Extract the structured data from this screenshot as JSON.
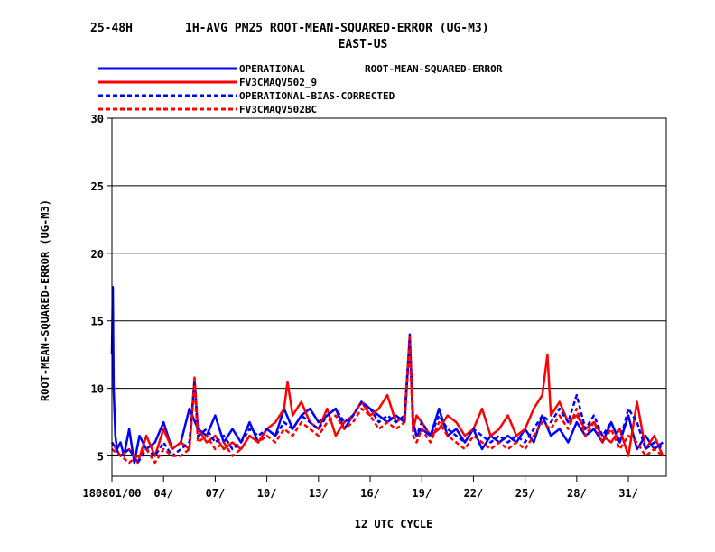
{
  "chart_data": {
    "type": "line",
    "title_left": "25-48H",
    "title_main": "1H-AVG PM25 ROOT-MEAN-SQUARED-ERROR (UG-M3)",
    "subtitle": "EAST-US",
    "legend_note": "ROOT-MEAN-SQUARED-ERROR",
    "ylabel": "ROOT-MEAN-SQUARED-ERROR (UG-M3)",
    "xlabel": "12 UTC CYCLE",
    "ylim": [
      3.5,
      30
    ],
    "xlim": [
      1,
      33.2
    ],
    "yticks": [
      5,
      10,
      15,
      20,
      25,
      30
    ],
    "ytick_labels": [
      "5",
      "10",
      "15",
      "20",
      "25",
      "30"
    ],
    "xticks": [
      1,
      4,
      7,
      10,
      13,
      16,
      19,
      22,
      25,
      28,
      31
    ],
    "xtick_labels": [
      "180801/00",
      "04/",
      "07/",
      "10/",
      "13/",
      "16/",
      "19/",
      "22/",
      "25/",
      "28/",
      "31/"
    ],
    "grid": "horizontal",
    "series": [
      {
        "name": "OPERATIONAL",
        "color": "#0000ff",
        "dash": "solid",
        "x": [
          1.0,
          1.05,
          1.1,
          1.2,
          1.3,
          1.5,
          1.7,
          2.0,
          2.3,
          2.6,
          3.0,
          3.5,
          4.0,
          4.5,
          5.0,
          5.5,
          6.0,
          6.5,
          7.0,
          7.5,
          8.0,
          8.5,
          9.0,
          9.5,
          10.0,
          10.5,
          11.0,
          11.5,
          12.0,
          12.5,
          13.0,
          13.5,
          14.0,
          14.5,
          15.0,
          15.5,
          16.0,
          16.5,
          17.0,
          17.5,
          18.0,
          18.3,
          18.5,
          18.7,
          19.0,
          19.5,
          20.0,
          20.5,
          21.0,
          21.5,
          22.0,
          22.5,
          23.0,
          23.5,
          24.0,
          24.5,
          25.0,
          25.5,
          26.0,
          26.5,
          27.0,
          27.5,
          28.0,
          28.5,
          29.0,
          29.5,
          30.0,
          30.5,
          31.0,
          31.5,
          32.0,
          32.5,
          33.0
        ],
        "y": [
          12.5,
          17.5,
          10.0,
          6.5,
          5.5,
          6.0,
          5.0,
          7.0,
          4.5,
          6.5,
          5.5,
          6.0,
          7.5,
          5.5,
          6.0,
          8.5,
          7.0,
          6.5,
          8.0,
          6.0,
          7.0,
          6.0,
          7.5,
          6.0,
          7.0,
          6.5,
          8.5,
          7.0,
          8.0,
          8.5,
          7.5,
          8.0,
          8.5,
          7.0,
          8.0,
          9.0,
          8.5,
          8.0,
          7.5,
          8.0,
          7.5,
          14.0,
          7.5,
          6.5,
          7.0,
          6.5,
          8.5,
          6.5,
          7.0,
          6.0,
          7.0,
          5.5,
          6.5,
          6.0,
          6.5,
          6.0,
          7.0,
          6.0,
          8.0,
          6.5,
          7.0,
          6.0,
          7.5,
          6.5,
          7.0,
          6.0,
          7.5,
          6.0,
          8.0,
          5.5,
          6.5,
          5.5,
          6.0
        ]
      },
      {
        "name": "FV3CMAQV502_9",
        "color": "#ff0000",
        "dash": "solid",
        "x": [
          1.0,
          1.5,
          2.0,
          2.5,
          3.0,
          3.5,
          4.0,
          4.5,
          5.0,
          5.5,
          5.8,
          6.0,
          6.5,
          7.0,
          7.5,
          8.0,
          8.5,
          9.0,
          9.5,
          10.0,
          10.5,
          11.0,
          11.2,
          11.5,
          12.0,
          12.5,
          13.0,
          13.5,
          14.0,
          14.5,
          15.0,
          15.5,
          16.0,
          16.5,
          17.0,
          17.5,
          18.0,
          18.3,
          18.5,
          18.7,
          19.0,
          19.5,
          20.0,
          20.5,
          21.0,
          21.5,
          22.0,
          22.5,
          23.0,
          23.5,
          24.0,
          24.5,
          25.0,
          25.5,
          26.0,
          26.3,
          26.5,
          27.0,
          27.5,
          28.0,
          28.5,
          29.0,
          29.5,
          30.0,
          30.5,
          31.0,
          31.5,
          32.0,
          32.5,
          33.0
        ],
        "y": [
          6.0,
          5.0,
          5.5,
          4.5,
          6.5,
          5.0,
          7.0,
          5.5,
          6.0,
          5.5,
          10.8,
          7.0,
          6.0,
          6.5,
          5.5,
          6.0,
          5.5,
          6.5,
          6.0,
          7.0,
          7.5,
          8.5,
          10.5,
          8.0,
          9.0,
          7.5,
          7.0,
          8.5,
          6.5,
          7.5,
          8.0,
          9.0,
          8.0,
          8.5,
          9.5,
          7.5,
          8.0,
          13.8,
          7.0,
          8.0,
          7.5,
          6.5,
          7.0,
          8.0,
          7.5,
          6.5,
          7.0,
          8.5,
          6.5,
          7.0,
          8.0,
          6.5,
          7.0,
          8.5,
          9.5,
          12.5,
          8.0,
          9.0,
          7.5,
          8.0,
          7.0,
          7.5,
          6.5,
          6.0,
          7.0,
          5.0,
          9.0,
          5.5,
          6.5,
          5.0
        ]
      },
      {
        "name": "OPERATIONAL-BIAS-CORRECTED",
        "color": "#0000ff",
        "dash": "dashed",
        "x": [
          1.0,
          1.5,
          2.0,
          2.5,
          3.0,
          3.5,
          4.0,
          4.5,
          5.0,
          5.5,
          5.8,
          6.0,
          6.5,
          7.0,
          7.5,
          8.0,
          8.5,
          9.0,
          9.5,
          10.0,
          10.5,
          11.0,
          11.5,
          12.0,
          12.5,
          13.0,
          13.5,
          14.0,
          14.5,
          15.0,
          15.5,
          16.0,
          16.5,
          17.0,
          17.5,
          18.0,
          18.3,
          18.5,
          18.7,
          19.0,
          19.5,
          20.0,
          20.5,
          21.0,
          21.5,
          22.0,
          22.5,
          23.0,
          23.5,
          24.0,
          24.5,
          25.0,
          25.5,
          26.0,
          26.5,
          27.0,
          27.5,
          28.0,
          28.5,
          29.0,
          29.5,
          30.0,
          30.5,
          31.0,
          31.5,
          32.0,
          32.5,
          33.0
        ],
        "y": [
          6.0,
          5.0,
          5.5,
          4.5,
          5.5,
          5.0,
          6.0,
          5.0,
          5.5,
          6.0,
          10.5,
          6.5,
          7.0,
          6.0,
          6.5,
          5.5,
          6.0,
          7.0,
          6.5,
          7.0,
          6.5,
          7.5,
          7.0,
          8.0,
          7.5,
          7.0,
          8.0,
          8.5,
          7.5,
          8.0,
          9.0,
          8.5,
          7.5,
          8.0,
          7.5,
          8.0,
          13.5,
          7.0,
          6.5,
          7.5,
          6.5,
          8.0,
          7.0,
          6.5,
          6.0,
          7.0,
          6.5,
          6.0,
          6.5,
          6.0,
          6.5,
          6.0,
          7.0,
          8.0,
          7.5,
          8.5,
          7.5,
          9.5,
          7.0,
          8.0,
          6.5,
          7.5,
          6.0,
          8.5,
          7.5,
          5.5,
          6.0,
          5.5
        ]
      },
      {
        "name": "FV3CMAQV502BC",
        "color": "#ff0000",
        "dash": "dashed",
        "x": [
          1.0,
          1.5,
          2.0,
          2.5,
          3.0,
          3.5,
          4.0,
          4.5,
          5.0,
          5.5,
          5.8,
          6.0,
          6.5,
          7.0,
          7.5,
          8.0,
          8.5,
          9.0,
          9.5,
          10.0,
          10.5,
          11.0,
          11.5,
          12.0,
          12.5,
          13.0,
          13.5,
          14.0,
          14.5,
          15.0,
          15.5,
          16.0,
          16.5,
          17.0,
          17.5,
          18.0,
          18.3,
          18.5,
          18.7,
          19.0,
          19.5,
          20.0,
          20.5,
          21.0,
          21.5,
          22.0,
          22.5,
          23.0,
          23.5,
          24.0,
          24.5,
          25.0,
          25.5,
          26.0,
          26.5,
          27.0,
          27.5,
          28.0,
          28.5,
          29.0,
          29.5,
          30.0,
          30.5,
          31.0,
          31.5,
          32.0,
          32.5,
          33.0
        ],
        "y": [
          5.5,
          5.0,
          4.5,
          5.0,
          5.5,
          4.5,
          5.5,
          5.0,
          5.0,
          5.5,
          10.3,
          6.0,
          6.5,
          5.5,
          6.0,
          5.0,
          5.5,
          6.5,
          6.0,
          6.5,
          6.0,
          7.0,
          6.5,
          7.5,
          7.0,
          6.5,
          7.5,
          8.0,
          7.0,
          7.5,
          8.5,
          8.0,
          7.0,
          7.5,
          7.0,
          7.5,
          13.3,
          6.5,
          6.0,
          7.0,
          6.0,
          7.5,
          6.5,
          6.0,
          5.5,
          6.5,
          6.0,
          5.5,
          6.0,
          5.5,
          6.0,
          5.5,
          6.5,
          7.5,
          7.0,
          8.0,
          7.0,
          8.5,
          6.5,
          7.5,
          6.0,
          7.0,
          5.5,
          6.5,
          6.0,
          5.0,
          5.5,
          5.0
        ]
      }
    ]
  }
}
